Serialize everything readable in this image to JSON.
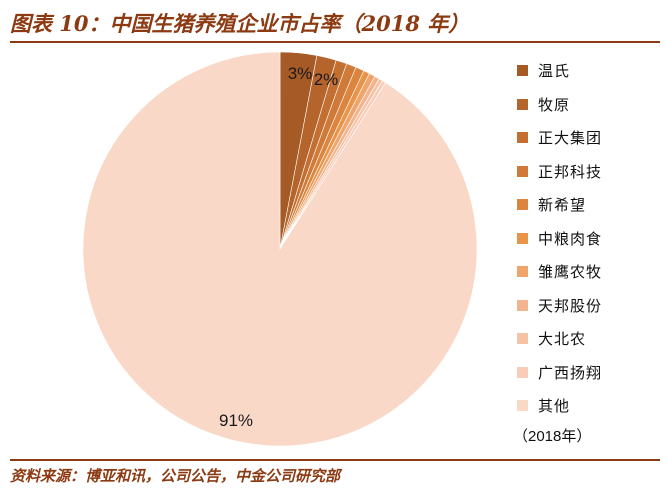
{
  "title": "图表 10：中国生猪养殖企业市占率（2018 年）",
  "source": "资料来源：博亚和讯，公司公告，中金公司研究部",
  "chart_data": {
    "type": "pie",
    "year_note": "（2018年）",
    "slices": [
      {
        "name": "温氏",
        "value": 3.0,
        "label": "3%",
        "color": "#a65a26"
      },
      {
        "name": "牧原",
        "value": 1.6,
        "label": "2%",
        "color": "#b5652b"
      },
      {
        "name": "正大集团",
        "value": 0.9,
        "label": "",
        "color": "#c26f31"
      },
      {
        "name": "正邦科技",
        "value": 0.8,
        "label": "",
        "color": "#cf7a38"
      },
      {
        "name": "新希望",
        "value": 0.7,
        "label": "",
        "color": "#dc853f"
      },
      {
        "name": "中粮肉食",
        "value": 0.5,
        "label": "",
        "color": "#e89449"
      },
      {
        "name": "雏鹰农牧",
        "value": 0.5,
        "label": "",
        "color": "#eea46a"
      },
      {
        "name": "天邦股份",
        "value": 0.4,
        "label": "",
        "color": "#f2b48e"
      },
      {
        "name": "大北农",
        "value": 0.3,
        "label": "",
        "color": "#f5c2a6"
      },
      {
        "name": "广西扬翔",
        "value": 0.3,
        "label": "",
        "color": "#f7ccb8"
      },
      {
        "name": "其他",
        "value": 91.0,
        "label": "91%",
        "color": "#f9d8c8"
      }
    ]
  }
}
